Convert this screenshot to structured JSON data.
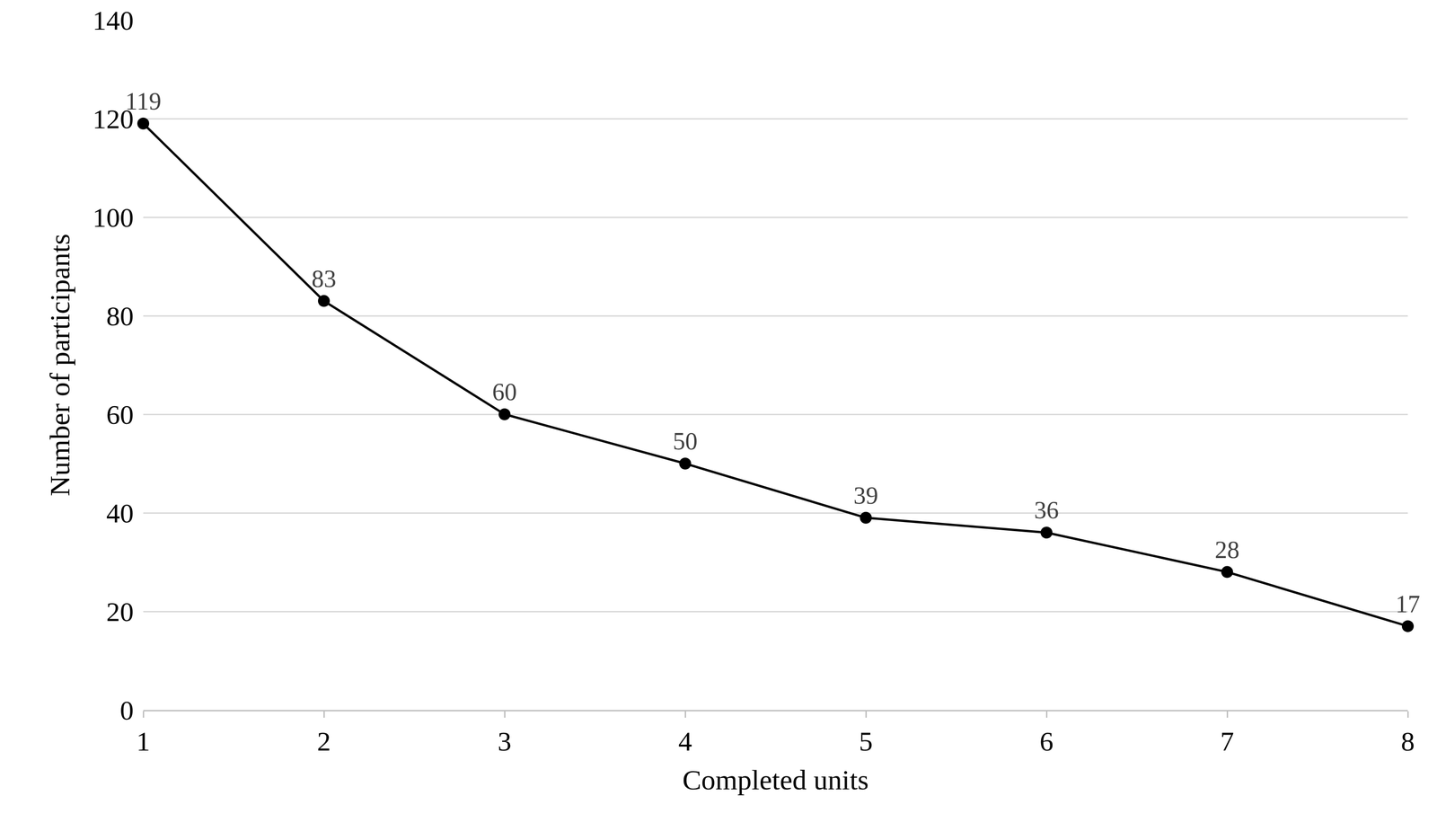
{
  "chart_data": {
    "type": "line",
    "x": [
      1,
      2,
      3,
      4,
      5,
      6,
      7,
      8
    ],
    "values": [
      119,
      83,
      60,
      50,
      39,
      36,
      28,
      17
    ],
    "xlabel": "Completed units",
    "ylabel": "Number of participants",
    "xlim": [
      1,
      8
    ],
    "xticks": [
      1,
      2,
      3,
      4,
      5,
      6,
      7,
      8
    ],
    "ylim": [
      0,
      140
    ],
    "yticks": [
      0,
      20,
      40,
      60,
      80,
      100,
      120,
      140
    ],
    "grid": true,
    "data_labels": true,
    "color": "#000000",
    "marker": "circle"
  }
}
